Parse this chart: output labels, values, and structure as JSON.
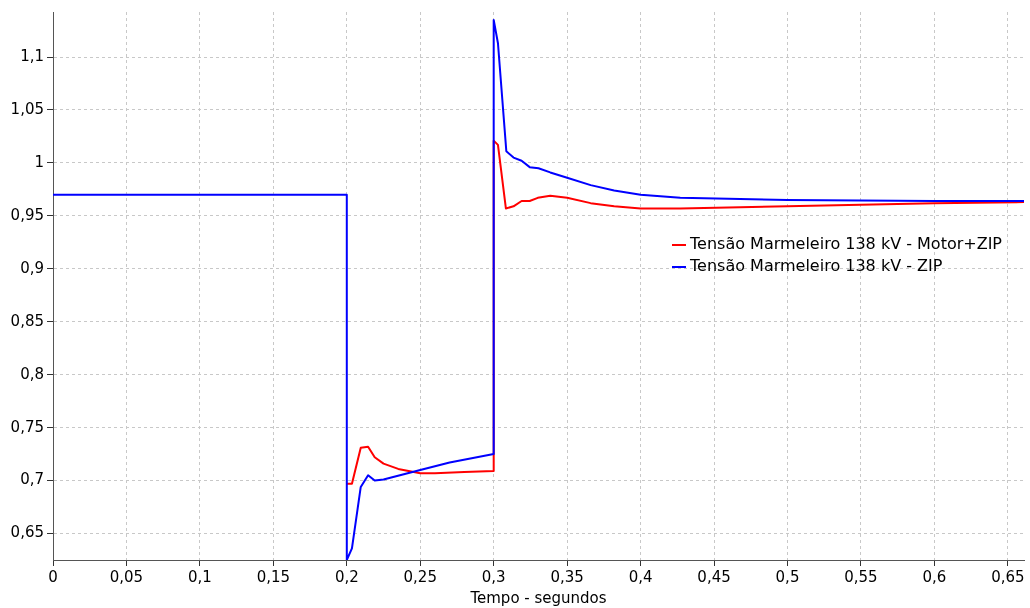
{
  "chart_data": {
    "type": "line",
    "xlabel": "Tempo - segundos",
    "xlim": [
      0,
      0.661
    ],
    "ylim": [
      0.625,
      1.1425
    ],
    "xticks": [
      {
        "value": 0,
        "label": "0"
      },
      {
        "value": 0.05,
        "label": "0,05"
      },
      {
        "value": 0.1,
        "label": "0,1"
      },
      {
        "value": 0.15,
        "label": "0,15"
      },
      {
        "value": 0.2,
        "label": "0,2"
      },
      {
        "value": 0.25,
        "label": "0,25"
      },
      {
        "value": 0.3,
        "label": "0,3"
      },
      {
        "value": 0.35,
        "label": "0,35"
      },
      {
        "value": 0.4,
        "label": "0,4"
      },
      {
        "value": 0.45,
        "label": "0,45"
      },
      {
        "value": 0.5,
        "label": "0,5"
      },
      {
        "value": 0.55,
        "label": "0,55"
      },
      {
        "value": 0.6,
        "label": "0,6"
      },
      {
        "value": 0.65,
        "label": "0,65"
      }
    ],
    "yticks": [
      {
        "value": 0.65,
        "label": "0,65"
      },
      {
        "value": 0.7,
        "label": "0,7"
      },
      {
        "value": 0.75,
        "label": "0,75"
      },
      {
        "value": 0.8,
        "label": "0,8"
      },
      {
        "value": 0.85,
        "label": "0,85"
      },
      {
        "value": 0.9,
        "label": "0,9"
      },
      {
        "value": 0.95,
        "label": "0,95"
      },
      {
        "value": 1,
        "label": "1"
      },
      {
        "value": 1.05,
        "label": "1,05"
      },
      {
        "value": 1.1,
        "label": "1,1"
      }
    ],
    "grid": true,
    "legend": "right",
    "line_style": "solid",
    "marker": "none",
    "series": [
      {
        "name": "Tensão Marmeleiro 138 kV - Motor+ZIP",
        "color": "#ff0000",
        "x": [
          0.2,
          0.2035,
          0.2095,
          0.2145,
          0.219,
          0.225,
          0.235,
          0.25,
          0.26,
          0.28,
          0.3,
          0.3,
          0.3029,
          0.3083,
          0.3135,
          0.319,
          0.3245,
          0.33,
          0.3385,
          0.35,
          0.366,
          0.382,
          0.4,
          0.427,
          0.5,
          0.6,
          0.661
        ],
        "values": [
          0.697,
          0.697,
          0.731,
          0.732,
          0.722,
          0.716,
          0.711,
          0.707,
          0.707,
          0.708,
          0.709,
          1.021,
          1.017,
          0.957,
          0.959,
          0.964,
          0.964,
          0.967,
          0.969,
          0.967,
          0.962,
          0.959,
          0.957,
          0.957,
          0.959,
          0.962,
          0.963
        ]
      },
      {
        "name": "Tensão Marmeleiro 138 kV - ZIP",
        "color": "#0000ff",
        "x": [
          0,
          0.2,
          0.2,
          0.2035,
          0.2095,
          0.2145,
          0.219,
          0.225,
          0.25,
          0.27,
          0.3,
          0.3,
          0.3029,
          0.3086,
          0.3135,
          0.319,
          0.3245,
          0.3305,
          0.3385,
          0.35,
          0.366,
          0.382,
          0.4,
          0.427,
          0.5,
          0.6,
          0.661
        ],
        "values": [
          0.97,
          0.97,
          0.625,
          0.636,
          0.694,
          0.705,
          0.7,
          0.701,
          0.71,
          0.717,
          0.725,
          1.135,
          1.113,
          1.011,
          1.005,
          1.002,
          0.996,
          0.995,
          0.991,
          0.986,
          0.979,
          0.974,
          0.97,
          0.967,
          0.965,
          0.964,
          0.964
        ]
      }
    ]
  }
}
